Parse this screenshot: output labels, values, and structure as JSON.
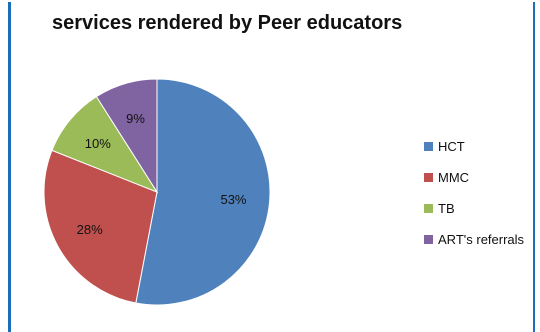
{
  "chart_data": {
    "type": "pie",
    "title": "services rendered by Peer educators",
    "categories": [
      "HCT",
      "MMC",
      "TB",
      "ART's referrals"
    ],
    "values": [
      53,
      28,
      10,
      9
    ],
    "data_labels": [
      "53%",
      "28%",
      "10%",
      "9%"
    ],
    "colors": [
      "#4f81bd",
      "#c0504d",
      "#9bbb59",
      "#8064a2"
    ],
    "legend_position": "right",
    "xlabel": "",
    "ylabel": ""
  },
  "colors": {
    "frame_border": "#1b6fb8"
  }
}
